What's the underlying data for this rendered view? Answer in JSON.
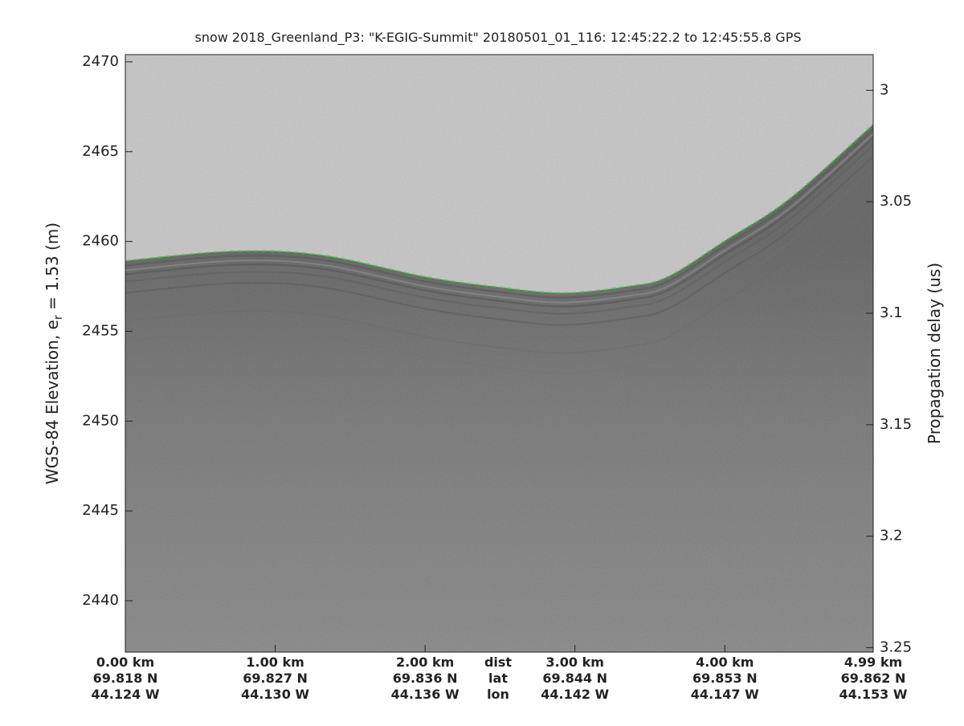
{
  "chart_data": {
    "type": "echogram",
    "title": "snow 2018_Greenland_P3: \"K-EGIG-Summit\"  20180501_01_116: 12:45:22.2 to 12:45:55.8 GPS",
    "ylabel": {
      "text": "WGS-84 Elevation, e",
      "sub": "r",
      "rest": " = 1.53 (m)"
    },
    "y2label": "Propagation delay (us)",
    "xlim": [
      0,
      4.99
    ],
    "ylim": [
      2437.14,
      2470.4
    ],
    "y2lim": [
      3.252,
      2.984
    ],
    "yticks": [
      2440,
      2445,
      2450,
      2455,
      2460,
      2465,
      2470
    ],
    "y2ticks": [
      3,
      3.05,
      3.1,
      3.15,
      3.2,
      3.25
    ],
    "xticks": [
      {
        "value": 0,
        "label": "0.00 km"
      },
      {
        "value": 1,
        "label": "1.00 km"
      },
      {
        "value": 2,
        "label": "2.00 km"
      },
      {
        "value": 3,
        "label": "3.00 km"
      },
      {
        "value": 4,
        "label": "4.00 km"
      },
      {
        "value": 4.99,
        "label": "4.99 km"
      }
    ],
    "lat_labels": [
      "69.818 N",
      "69.827 N",
      "69.836 N",
      "69.844 N",
      "69.853 N",
      "69.862 N"
    ],
    "lon_labels": [
      "44.124 W",
      "44.130 W",
      "44.136 W",
      "44.142 W",
      "44.147 W",
      "44.153 W"
    ],
    "row_labels": [
      "dist",
      "lat",
      "lon"
    ],
    "series": [
      {
        "color": "#22cc22",
        "x": [
          0,
          0.72,
          1.31,
          2.0,
          2.49,
          2.92,
          3.35,
          3.62,
          4.0,
          4.43,
          4.99
        ],
        "values": [
          2458.93,
          2459.46,
          2459.24,
          2458.04,
          2457.46,
          2457.14,
          2457.5,
          2458.04,
          2460.04,
          2462.37,
          2466.52
        ]
      }
    ]
  }
}
